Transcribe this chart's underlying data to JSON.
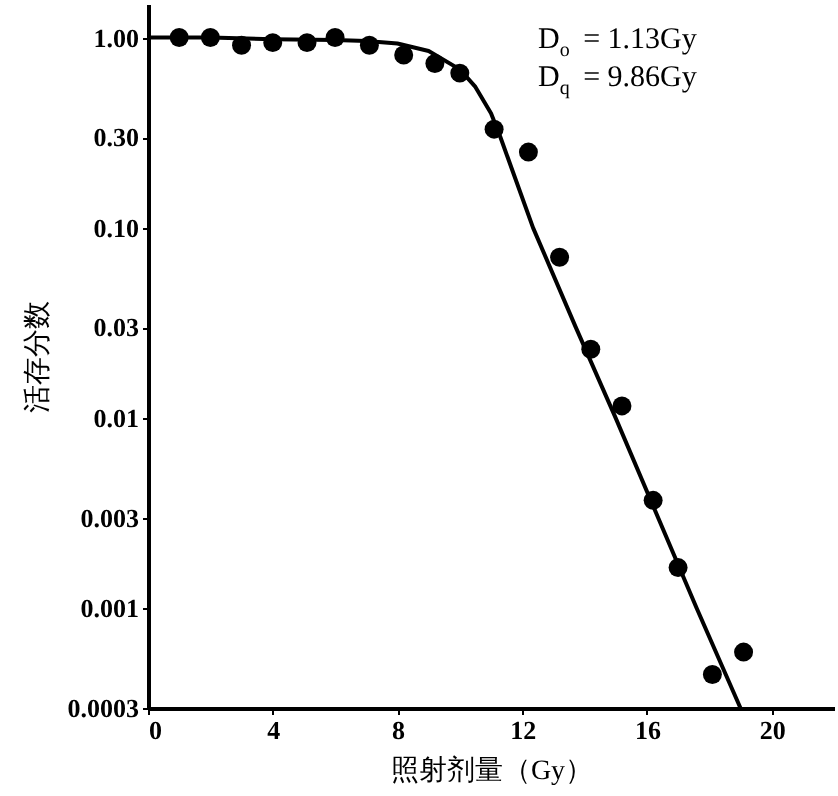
{
  "chart_data": {
    "type": "scatter",
    "xlabel": "照射剂量（Gy）",
    "ylabel": "活存分数",
    "annotations": [
      "D$_{o}$ = 1.13Gy",
      "D$_{q}$ = 9.86Gy"
    ],
    "log": "y",
    "grid": false,
    "xlim": [
      0,
      22
    ],
    "xticks": [
      0,
      4,
      8,
      12,
      16,
      20
    ],
    "ylim": [
      0.0003,
      1.5
    ],
    "yticks": [
      {
        "value": 1,
        "label": "1.00"
      },
      {
        "value": 0.3,
        "label": "0.30"
      },
      {
        "value": 0.1,
        "label": "0.10"
      },
      0.03,
      0.01,
      0.003,
      0.001,
      0.0003
    ],
    "series": [
      {
        "marker": "circle",
        "color": "#000000",
        "x": [
          1,
          2,
          3,
          4,
          5.1,
          6,
          7.1,
          8.2,
          9.2,
          10,
          11.1,
          12.2,
          13.2,
          14.2,
          15.2,
          16.2,
          17,
          18.1,
          19.1
        ],
        "values": [
          1.0,
          1.0,
          0.91,
          0.94,
          0.94,
          1.0,
          0.91,
          0.81,
          0.73,
          0.65,
          0.33,
          0.25,
          0.07,
          0.023,
          0.0116,
          0.0037,
          0.00164,
          0.00045,
          0.00059
        ]
      },
      {
        "type": "line",
        "color": "#000000",
        "line_style": "solid",
        "x": [
          0,
          2,
          4,
          6,
          7,
          8,
          9,
          10,
          10.5,
          11,
          11.3,
          12.35,
          13.72,
          15,
          17.6,
          19
        ],
        "values": [
          1.0,
          1.0,
          0.98,
          0.97,
          0.96,
          0.93,
          0.85,
          0.68,
          0.55,
          0.4,
          0.3,
          0.1,
          0.03,
          0.01,
          0.001,
          0.0003
        ]
      }
    ]
  }
}
